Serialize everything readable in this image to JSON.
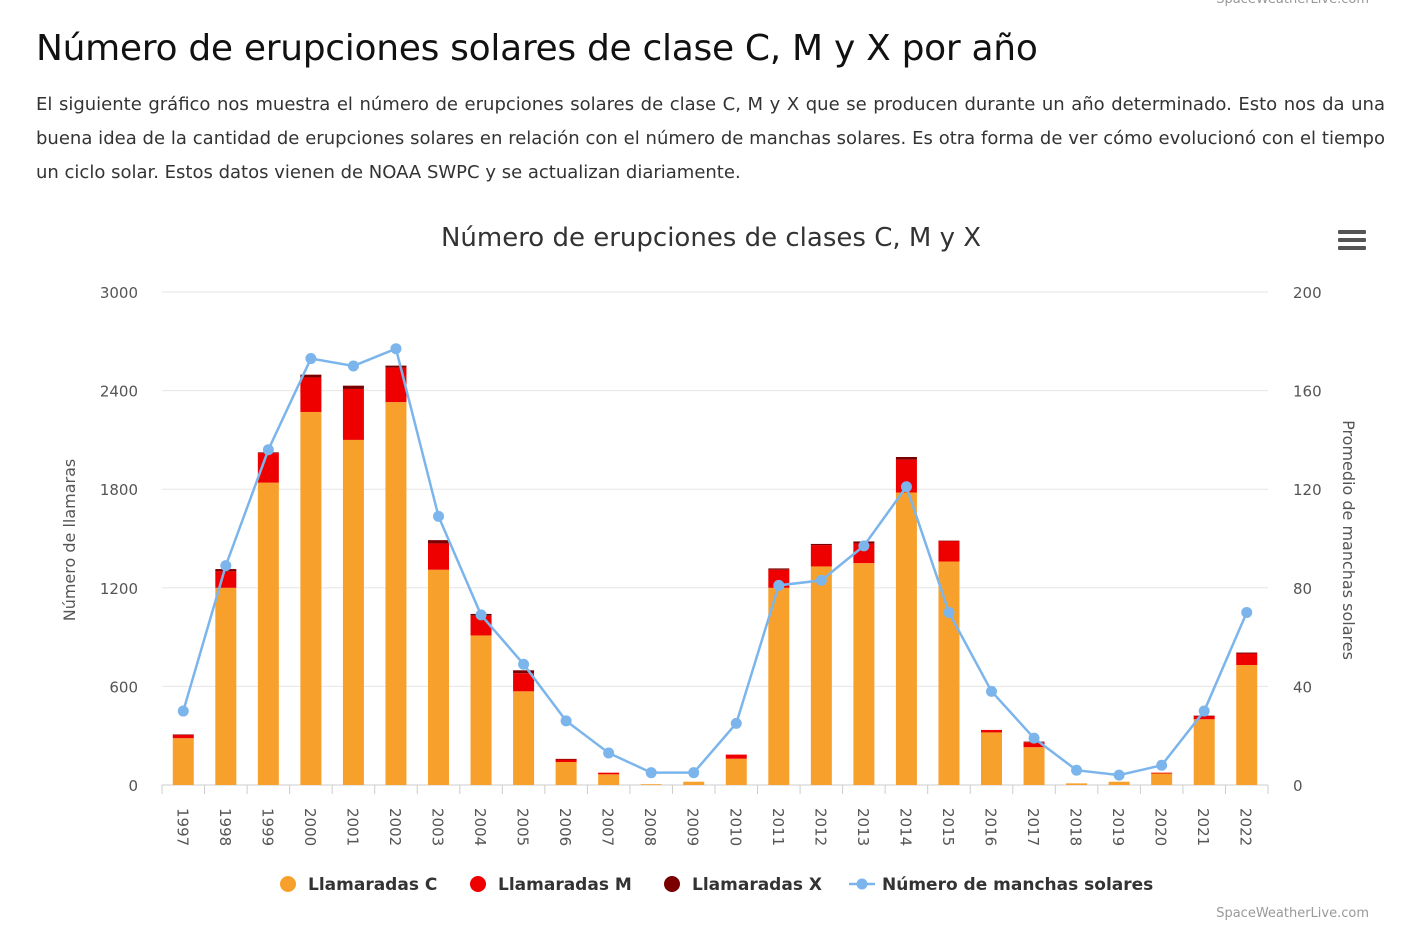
{
  "watermark": "SpaceWeatherLive.com",
  "page": {
    "title": "Número de erupciones solares de clase C, M y X por año",
    "intro": "El siguiente gráfico nos muestra el número de erupciones solares de clase C, M y X que se producen durante un año determinado. Esto nos da una buena idea de la cantidad de erupciones solares en relación con el número de manchas solares. Es otra forma de ver cómo evolucionó con el tiempo un ciclo solar. Estos datos vienen de NOAA SWPC y se actualizan diariamente."
  },
  "menu": {
    "icon": "hamburger-menu-icon"
  },
  "chart_data": {
    "type": "bar",
    "stacked": true,
    "title": "Número de erupciones de clases C, M y X",
    "xlabel": "",
    "ylabel": "Número de llamaras",
    "y2label": "Promedio de manchas solares",
    "ylim": [
      0,
      3000
    ],
    "y2lim": [
      0,
      200
    ],
    "yticks": [
      0,
      600,
      1200,
      1800,
      2400,
      3000
    ],
    "y2ticks": [
      0,
      40,
      80,
      120,
      160,
      200
    ],
    "grid": true,
    "legend_position": "bottom",
    "categories": [
      "1997",
      "1998",
      "1999",
      "2000",
      "2001",
      "2002",
      "2003",
      "2004",
      "2005",
      "2006",
      "2007",
      "2008",
      "2009",
      "2010",
      "2011",
      "2012",
      "2013",
      "2014",
      "2015",
      "2016",
      "2017",
      "2018",
      "2019",
      "2020",
      "2021",
      "2022"
    ],
    "series": [
      {
        "name": "Llamaradas C",
        "type": "bar",
        "axis": "left",
        "color": "#f7a12c",
        "values": [
          285,
          1200,
          1840,
          2270,
          2100,
          2330,
          1310,
          910,
          570,
          140,
          65,
          5,
          20,
          160,
          1200,
          1330,
          1350,
          1780,
          1360,
          320,
          230,
          10,
          20,
          70,
          400,
          730
        ]
      },
      {
        "name": "Llamaradas M",
        "type": "bar",
        "axis": "left",
        "color": "#ee0000",
        "values": [
          20,
          100,
          180,
          210,
          310,
          210,
          160,
          120,
          110,
          15,
          10,
          0,
          0,
          25,
          110,
          130,
          120,
          200,
          125,
          15,
          30,
          0,
          0,
          5,
          20,
          70
        ]
      },
      {
        "name": "Llamaradas X",
        "type": "bar",
        "axis": "left",
        "color": "#7a0000",
        "values": [
          3,
          14,
          4,
          17,
          20,
          12,
          20,
          11,
          18,
          4,
          0,
          0,
          0,
          0,
          8,
          7,
          12,
          16,
          2,
          0,
          4,
          0,
          0,
          0,
          2,
          6
        ]
      },
      {
        "name": "Número de manchas solares",
        "type": "line",
        "axis": "right",
        "color": "#7cb5ec",
        "values": [
          30,
          89,
          136,
          173,
          170,
          177,
          109,
          69,
          49,
          26,
          13,
          5,
          5,
          25,
          81,
          83,
          97,
          121,
          70,
          38,
          19,
          6,
          4,
          8,
          30,
          70
        ]
      }
    ]
  }
}
